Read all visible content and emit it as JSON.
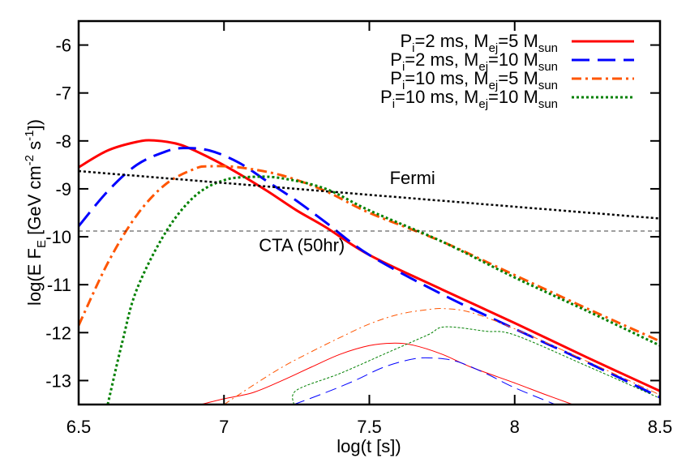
{
  "chart_data": {
    "type": "line",
    "title": "",
    "xlabel": "log(t [s])",
    "ylabel": "log(E F_E [GeV cm^-2 s^-1])",
    "xlim": [
      6.5,
      8.5
    ],
    "ylim": [
      -13.5,
      -5.5
    ],
    "grid": false,
    "legend_position": "upper right",
    "x_ticks": [
      6.5,
      7,
      7.5,
      8,
      8.5
    ],
    "x_tick_labels": [
      "6.5",
      "7",
      "7.5",
      "8",
      "8.5"
    ],
    "y_ticks": [
      -6,
      -7,
      -8,
      -9,
      -10,
      -11,
      -12,
      -13
    ],
    "y_tick_labels": [
      "-6",
      "-7",
      "-8",
      "-9",
      "-10",
      "-11",
      "-12",
      "-13"
    ],
    "legend": [
      {
        "P": "P",
        "P_sub": "i",
        "mid": "=2 ms, M",
        "M_sub": "ej",
        "end": "=5 M",
        "end_sub": "sun",
        "color": "#ff0000",
        "style": "solid"
      },
      {
        "P": "P",
        "P_sub": "i",
        "mid": "=2 ms, M",
        "M_sub": "ej",
        "end": "=10 M",
        "end_sub": "sun",
        "color": "#0000ff",
        "style": "dashed"
      },
      {
        "P": "P",
        "P_sub": "i",
        "mid": "=10 ms, M",
        "M_sub": "ej",
        "end": "=5 M",
        "end_sub": "sun",
        "color": "#ff5500",
        "style": "dashdot"
      },
      {
        "P": "P",
        "P_sub": "i",
        "mid": "=10 ms, M",
        "M_sub": "ej",
        "end": "=10 M",
        "end_sub": "sun",
        "color": "#008000",
        "style": "dotted"
      }
    ],
    "annotations": [
      {
        "text": "Fermi",
        "x": 7.57,
        "y": -8.9
      },
      {
        "text": "CTA (50hr)",
        "x": 7.12,
        "y": -10.3
      }
    ],
    "series": [
      {
        "name": "Pi=2 ms, Mej=5 Msun (thick)",
        "color": "#ff0000",
        "style": "solid",
        "width": 3,
        "x": [
          6.5,
          6.6,
          6.7,
          6.76,
          6.85,
          6.95,
          7.05,
          7.15,
          7.25,
          7.35,
          7.5,
          7.75,
          8.0,
          8.25,
          8.5
        ],
        "y": [
          -8.55,
          -8.2,
          -8.02,
          -7.99,
          -8.08,
          -8.35,
          -8.68,
          -9.05,
          -9.45,
          -9.8,
          -10.38,
          -11.1,
          -11.8,
          -12.52,
          -13.22
        ]
      },
      {
        "name": "Pi=2 ms, Mej=10 Msun (thick)",
        "color": "#0000ff",
        "style": "dashed",
        "width": 3,
        "x": [
          6.5,
          6.6,
          6.7,
          6.8,
          6.86,
          6.95,
          7.05,
          7.15,
          7.25,
          7.35,
          7.5,
          7.75,
          8.0,
          8.25,
          8.5
        ],
        "y": [
          -9.78,
          -9.05,
          -8.5,
          -8.22,
          -8.15,
          -8.2,
          -8.45,
          -8.85,
          -9.25,
          -9.7,
          -10.38,
          -11.2,
          -11.92,
          -12.62,
          -13.35
        ]
      },
      {
        "name": "Pi=10 ms, Mej=5 Msun (thick)",
        "color": "#ff5500",
        "style": "dashdot",
        "width": 3,
        "x": [
          6.5,
          6.6,
          6.7,
          6.8,
          6.9,
          6.95,
          7.05,
          7.2,
          7.35,
          7.5,
          7.75,
          8.0,
          8.25,
          8.5
        ],
        "y": [
          -11.85,
          -10.55,
          -9.55,
          -8.9,
          -8.58,
          -8.53,
          -8.55,
          -8.72,
          -9.05,
          -9.5,
          -10.1,
          -10.8,
          -11.5,
          -12.18
        ]
      },
      {
        "name": "Pi=10 ms, Mej=10 Msun (thick)",
        "color": "#008000",
        "style": "dotted",
        "width": 3,
        "x": [
          6.6,
          6.65,
          6.7,
          6.8,
          6.9,
          7.0,
          7.1,
          7.2,
          7.35,
          7.5,
          7.75,
          8.0,
          8.25,
          8.5
        ],
        "y": [
          -13.5,
          -12.2,
          -11.1,
          -9.9,
          -9.15,
          -8.82,
          -8.75,
          -8.78,
          -9.0,
          -9.45,
          -10.1,
          -10.85,
          -11.55,
          -12.27
        ]
      },
      {
        "name": "Pi=2 ms, Mej=5 Msun (thin)",
        "color": "#ff0000",
        "style": "solid",
        "width": 1,
        "x": [
          6.92,
          7.0,
          7.1,
          7.2,
          7.3,
          7.4,
          7.5,
          7.58,
          7.65,
          7.75,
          7.85,
          8.0,
          8.1,
          8.2
        ],
        "y": [
          -13.5,
          -13.38,
          -13.25,
          -13.0,
          -12.72,
          -12.45,
          -12.27,
          -12.22,
          -12.26,
          -12.45,
          -12.72,
          -13.05,
          -13.28,
          -13.5
        ]
      },
      {
        "name": "Pi=2 ms, Mej=10 Msun (thin)",
        "color": "#0000ff",
        "style": "dashed",
        "width": 1,
        "x": [
          7.24,
          7.35,
          7.45,
          7.55,
          7.65,
          7.72,
          7.8,
          7.9,
          8.0,
          8.14
        ],
        "y": [
          -13.5,
          -13.25,
          -13.0,
          -12.72,
          -12.55,
          -12.53,
          -12.6,
          -12.85,
          -13.15,
          -13.5
        ]
      },
      {
        "name": "Pi=10 ms, Mej=5 Msun (thin)",
        "color": "#ff5500",
        "style": "dashdot",
        "width": 1,
        "x": [
          7.0,
          7.1,
          7.2,
          7.3,
          7.4,
          7.5,
          7.6,
          7.7,
          7.76,
          7.85,
          8.0,
          8.25,
          8.5
        ],
        "y": [
          -13.5,
          -13.1,
          -12.72,
          -12.4,
          -12.1,
          -11.82,
          -11.62,
          -11.52,
          -11.5,
          -11.58,
          -11.92,
          -12.6,
          -13.3
        ]
      },
      {
        "name": "Pi=10 ms, Mej=10 Msun (thin)",
        "color": "#008000",
        "style": "dotted",
        "width": 1,
        "x": [
          7.24,
          7.25,
          7.4,
          7.55,
          7.7,
          7.76,
          7.9,
          8.0,
          8.25,
          8.5
        ],
        "y": [
          -13.5,
          -13.2,
          -12.85,
          -12.45,
          -12.05,
          -11.88,
          -11.97,
          -12.05,
          -12.7,
          -13.37
        ]
      },
      {
        "name": "Fermi",
        "color": "#000000",
        "style": "dotted",
        "width": 2.5,
        "x": [
          6.5,
          8.5
        ],
        "y": [
          -8.63,
          -9.62
        ]
      },
      {
        "name": "CTA (50hr)",
        "color": "#000000",
        "style": "thin-dashed",
        "width": 0.8,
        "x": [
          6.5,
          8.5
        ],
        "y": [
          -9.88,
          -9.88
        ]
      }
    ]
  }
}
